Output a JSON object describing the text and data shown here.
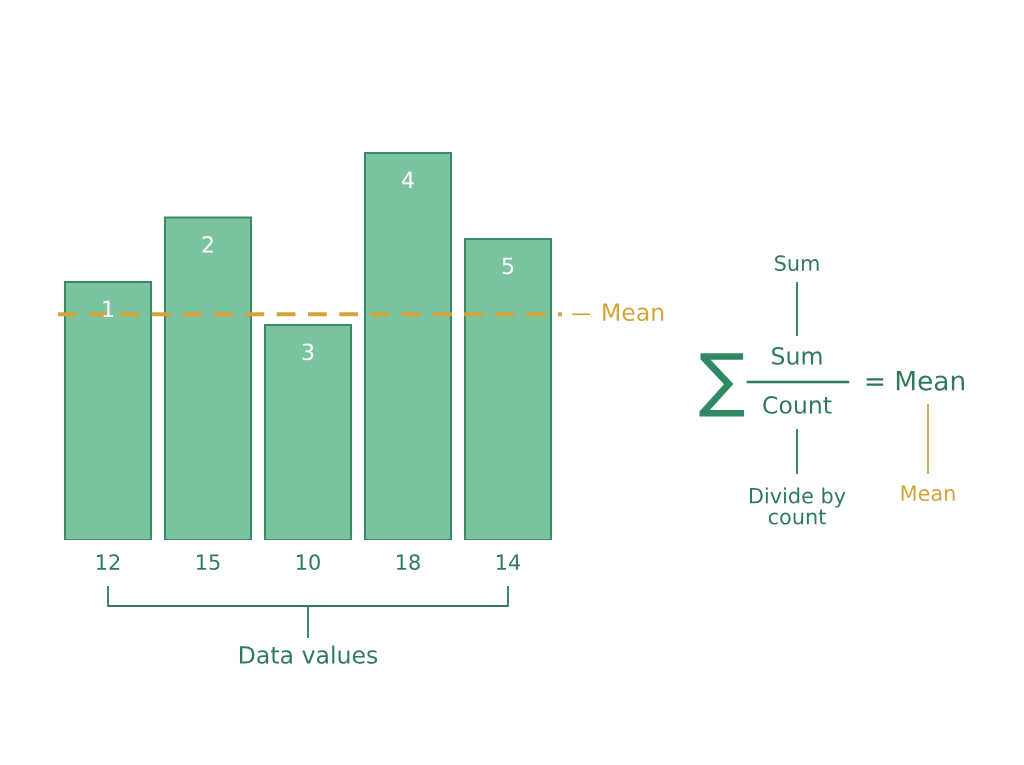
{
  "chart_data": {
    "type": "bar",
    "categories": [
      "1",
      "2",
      "3",
      "4",
      "5"
    ],
    "values": [
      12,
      15,
      10,
      18,
      14
    ],
    "color": "#7cc49f",
    "data_labels": true,
    "tick_labels": false,
    "ref_lines": [
      {
        "axis": "y",
        "value": 10.5,
        "label": "Mean",
        "color": "#d3a43a",
        "line_style": "dashed"
      }
    ],
    "annotations": [
      "Data values",
      "Sum",
      "∑",
      "Sum",
      "Count",
      "= Mean",
      "Divide by\ncount",
      "Mean"
    ]
  }
}
